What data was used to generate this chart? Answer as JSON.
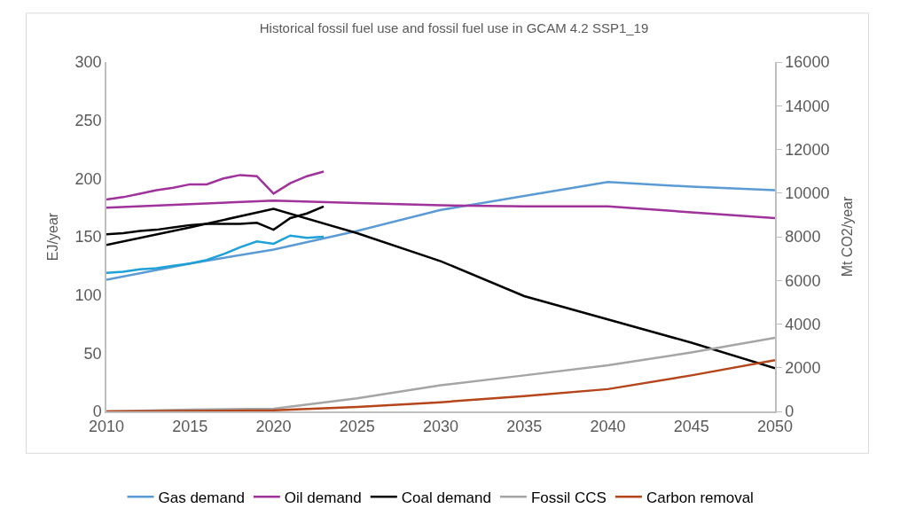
{
  "chart_data": {
    "type": "line",
    "title": "Historical fossil fuel use and fossil fuel use in GCAM 4.2 SSP1_19",
    "ylabel": "EJ/year",
    "y2label": "Mt CO2/year",
    "x": [
      2010,
      2015,
      2020,
      2025,
      2030,
      2035,
      2040,
      2045,
      2050
    ],
    "xlim": [
      2010,
      2050
    ],
    "xticks": [
      2010,
      2015,
      2020,
      2025,
      2030,
      2035,
      2040,
      2045,
      2050
    ],
    "ylim": [
      0,
      300
    ],
    "yticks": [
      0,
      50,
      100,
      150,
      200,
      250,
      300
    ],
    "y2lim": [
      0,
      16000
    ],
    "y2ticks": [
      0,
      2000,
      4000,
      6000,
      8000,
      10000,
      12000,
      14000,
      16000
    ],
    "legend": "bottom",
    "marker": "none",
    "line_style": "solid",
    "series": [
      {
        "name": "Gas demand",
        "color": "#5b9bd5",
        "values": [
          113,
          127,
          139,
          155,
          173,
          185,
          197,
          193,
          190
        ]
      },
      {
        "name": "Oil demand",
        "color": "#a0329b",
        "values": [
          175,
          178,
          181,
          179,
          177,
          176,
          176,
          171,
          166
        ]
      },
      {
        "name": "Coal demand",
        "color": "#000000",
        "values": [
          143,
          158,
          174,
          153,
          129,
          99,
          79,
          59,
          37
        ]
      },
      {
        "name": "Fossil CCS",
        "color": "#a5a5a5",
        "axis": "y2",
        "values": [
          0,
          80,
          120,
          600,
          1200,
          1650,
          2110,
          2700,
          3370
        ]
      },
      {
        "name": "Carbon removal",
        "color": "#b5451b",
        "axis": "y2",
        "values": [
          0,
          20,
          50,
          200,
          420,
          700,
          1020,
          1650,
          2350
        ]
      },
      {
        "color": "#1ea0d8",
        "x": [
          2010,
          2011,
          2012,
          2013,
          2014,
          2015,
          2016,
          2017,
          2018,
          2019,
          2020,
          2021,
          2022,
          2023
        ],
        "values": [
          119,
          120,
          122,
          123,
          125,
          127,
          130,
          135,
          141,
          146,
          144,
          151,
          149,
          150
        ]
      },
      {
        "color": "#a0329b",
        "x": [
          2010,
          2011,
          2012,
          2013,
          2014,
          2015,
          2016,
          2017,
          2018,
          2019,
          2020,
          2021,
          2022,
          2023
        ],
        "values": [
          182,
          184,
          187,
          190,
          192,
          195,
          195,
          200,
          203,
          202,
          187,
          196,
          202,
          206
        ]
      },
      {
        "color": "#000000",
        "x": [
          2010,
          2011,
          2012,
          2013,
          2014,
          2015,
          2016,
          2017,
          2018,
          2019,
          2020,
          2021,
          2022,
          2023
        ],
        "values": [
          152,
          153,
          155,
          156,
          158,
          160,
          161,
          161,
          161,
          162,
          156,
          166,
          170,
          176
        ]
      }
    ]
  }
}
